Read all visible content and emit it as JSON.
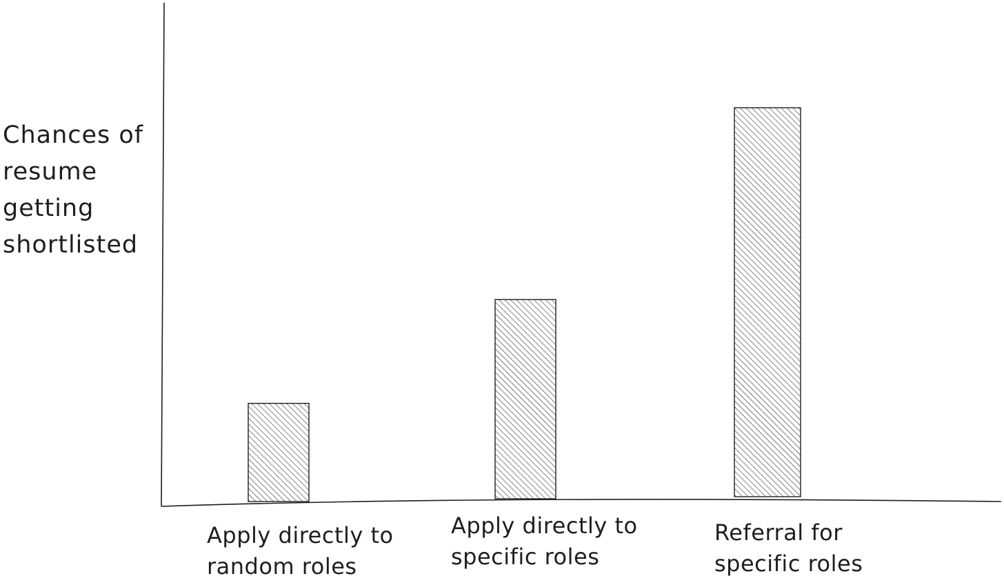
{
  "chart_data": {
    "type": "bar",
    "categories": [
      "Apply directly to random roles",
      "Apply directly to specific roles",
      "Referral for specific roles"
    ],
    "values": [
      25,
      51,
      100
    ],
    "title": "",
    "xlabel": "",
    "ylabel": "Chances of resume getting shortlisted",
    "ylim": [
      0,
      127
    ],
    "grid": false,
    "legend": "none",
    "bar_fill": "hatched",
    "colors": {
      "stroke": "#1e1e1e",
      "background": "#ffffff"
    }
  }
}
